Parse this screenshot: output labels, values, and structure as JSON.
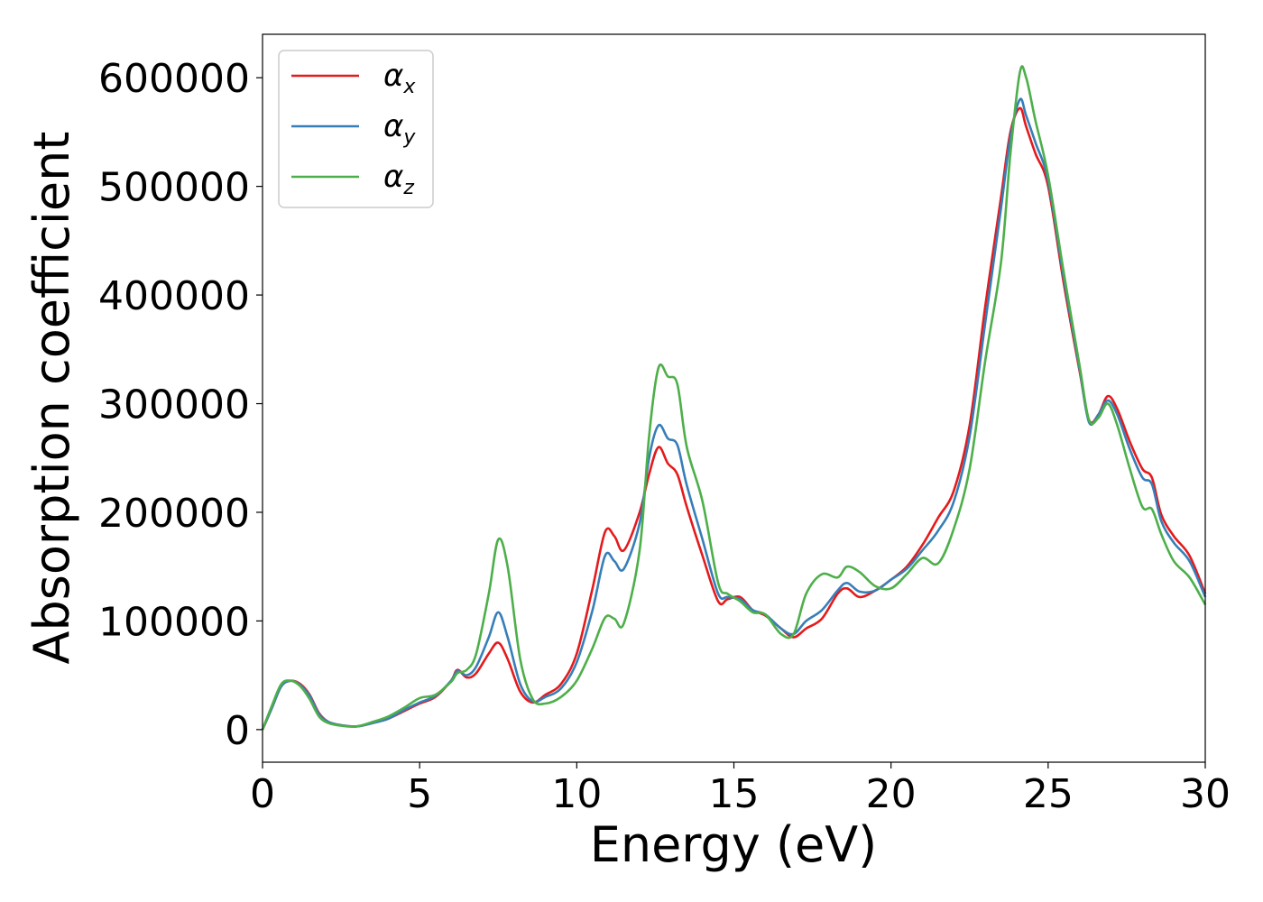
{
  "chart_data": {
    "type": "line",
    "title": "",
    "xlabel": "Energy (eV)",
    "ylabel": "Absorption coefficient",
    "xlim": [
      0,
      30
    ],
    "ylim": [
      -30000,
      640000
    ],
    "xticks": [
      0,
      5,
      10,
      15,
      20,
      25,
      30
    ],
    "yticks": [
      0,
      100000,
      200000,
      300000,
      400000,
      500000,
      600000
    ],
    "grid": false,
    "legend_position": "top-left",
    "series": [
      {
        "name": "α",
        "name_sub": "x",
        "color": "#e41a1c",
        "x": [
          0,
          0.3,
          0.6,
          0.9,
          1.2,
          1.5,
          1.8,
          2.1,
          2.5,
          3,
          3.5,
          4,
          4.5,
          5,
          5.5,
          6,
          6.2,
          6.5,
          6.8,
          7.2,
          7.5,
          7.8,
          8.2,
          8.6,
          9,
          9.5,
          10,
          10.5,
          10.9,
          11.2,
          11.5,
          12,
          12.3,
          12.6,
          12.9,
          13.2,
          13.5,
          14,
          14.5,
          14.8,
          15.2,
          15.6,
          16,
          16.5,
          16.9,
          17.3,
          17.8,
          18.3,
          18.6,
          19,
          19.5,
          20,
          20.5,
          21,
          21.5,
          22,
          22.5,
          23,
          23.5,
          23.8,
          24.1,
          24.3,
          24.6,
          25,
          25.5,
          26,
          26.3,
          26.6,
          26.9,
          27.2,
          27.6,
          28,
          28.3,
          28.6,
          29,
          29.5,
          30
        ],
        "values": [
          0,
          20000,
          40000,
          45000,
          42000,
          32000,
          15000,
          7000,
          4000,
          3000,
          6000,
          10000,
          17000,
          24000,
          30000,
          45000,
          55000,
          48000,
          52000,
          70000,
          80000,
          65000,
          35000,
          25000,
          32000,
          42000,
          70000,
          130000,
          182000,
          178000,
          165000,
          200000,
          235000,
          260000,
          245000,
          235000,
          205000,
          160000,
          118000,
          120000,
          122000,
          110000,
          105000,
          93000,
          85000,
          93000,
          102000,
          125000,
          130000,
          122000,
          128000,
          138000,
          150000,
          170000,
          195000,
          220000,
          280000,
          390000,
          490000,
          550000,
          572000,
          555000,
          530000,
          500000,
          410000,
          330000,
          285000,
          290000,
          307000,
          295000,
          265000,
          240000,
          232000,
          198000,
          178000,
          160000,
          125000
        ]
      },
      {
        "name": "α",
        "name_sub": "y",
        "color": "#377eb8",
        "x": [
          0,
          0.3,
          0.6,
          0.9,
          1.2,
          1.5,
          1.8,
          2.1,
          2.5,
          3,
          3.5,
          4,
          4.5,
          5,
          5.5,
          6,
          6.2,
          6.5,
          6.8,
          7.2,
          7.5,
          7.8,
          8.2,
          8.6,
          9,
          9.5,
          10,
          10.5,
          10.9,
          11.2,
          11.5,
          12,
          12.3,
          12.6,
          12.9,
          13.2,
          13.5,
          14,
          14.5,
          14.8,
          15.2,
          15.6,
          16,
          16.5,
          16.9,
          17.3,
          17.8,
          18.3,
          18.6,
          19,
          19.5,
          20,
          20.5,
          21,
          21.5,
          22,
          22.5,
          23,
          23.5,
          23.8,
          24.1,
          24.3,
          24.6,
          25,
          25.5,
          26,
          26.3,
          26.6,
          26.9,
          27.2,
          27.6,
          28,
          28.3,
          28.6,
          29,
          29.5,
          30
        ],
        "values": [
          0,
          20000,
          40000,
          45000,
          41000,
          31000,
          14000,
          7000,
          4000,
          3000,
          6000,
          10000,
          18000,
          25000,
          31000,
          45000,
          54000,
          50000,
          58000,
          85000,
          108000,
          85000,
          42000,
          26000,
          30000,
          38000,
          62000,
          110000,
          160000,
          155000,
          148000,
          190000,
          250000,
          280000,
          268000,
          262000,
          225000,
          175000,
          125000,
          122000,
          120000,
          110000,
          106000,
          93000,
          88000,
          100000,
          110000,
          128000,
          135000,
          127000,
          128000,
          138000,
          148000,
          165000,
          183000,
          210000,
          270000,
          375000,
          480000,
          545000,
          580000,
          565000,
          540000,
          505000,
          415000,
          332000,
          283000,
          290000,
          303000,
          290000,
          258000,
          232000,
          226000,
          192000,
          172000,
          155000,
          122000
        ]
      },
      {
        "name": "α",
        "name_sub": "z",
        "color": "#4daf4a",
        "x": [
          0,
          0.3,
          0.6,
          0.9,
          1.2,
          1.5,
          1.8,
          2.1,
          2.5,
          3,
          3.5,
          4,
          4.5,
          5,
          5.5,
          6,
          6.2,
          6.5,
          6.8,
          7.2,
          7.5,
          7.8,
          8.2,
          8.6,
          9,
          9.5,
          10,
          10.5,
          10.9,
          11.2,
          11.5,
          12,
          12.3,
          12.6,
          12.9,
          13.2,
          13.5,
          14,
          14.5,
          14.8,
          15.2,
          15.6,
          16,
          16.5,
          16.9,
          17.3,
          17.8,
          18.3,
          18.6,
          19,
          19.5,
          20,
          20.5,
          21,
          21.5,
          22,
          22.5,
          23,
          23.5,
          23.8,
          24.1,
          24.3,
          24.6,
          25,
          25.5,
          26,
          26.3,
          26.6,
          26.9,
          27.2,
          27.6,
          28,
          28.3,
          28.6,
          29,
          29.5,
          30
        ],
        "values": [
          0,
          22000,
          42000,
          45000,
          40000,
          28000,
          12000,
          6000,
          3500,
          3000,
          7000,
          12000,
          20000,
          29000,
          32000,
          44000,
          52000,
          55000,
          70000,
          125000,
          175000,
          150000,
          65000,
          28000,
          24000,
          30000,
          45000,
          75000,
          103000,
          102000,
          98000,
          165000,
          270000,
          333000,
          325000,
          318000,
          260000,
          210000,
          135000,
          125000,
          118000,
          108000,
          106000,
          88000,
          88000,
          125000,
          143000,
          140000,
          150000,
          145000,
          132000,
          130000,
          143000,
          158000,
          153000,
          185000,
          240000,
          340000,
          430000,
          530000,
          605000,
          600000,
          560000,
          510000,
          420000,
          335000,
          285000,
          287000,
          300000,
          280000,
          240000,
          205000,
          203000,
          180000,
          155000,
          140000,
          115000
        ]
      }
    ]
  }
}
